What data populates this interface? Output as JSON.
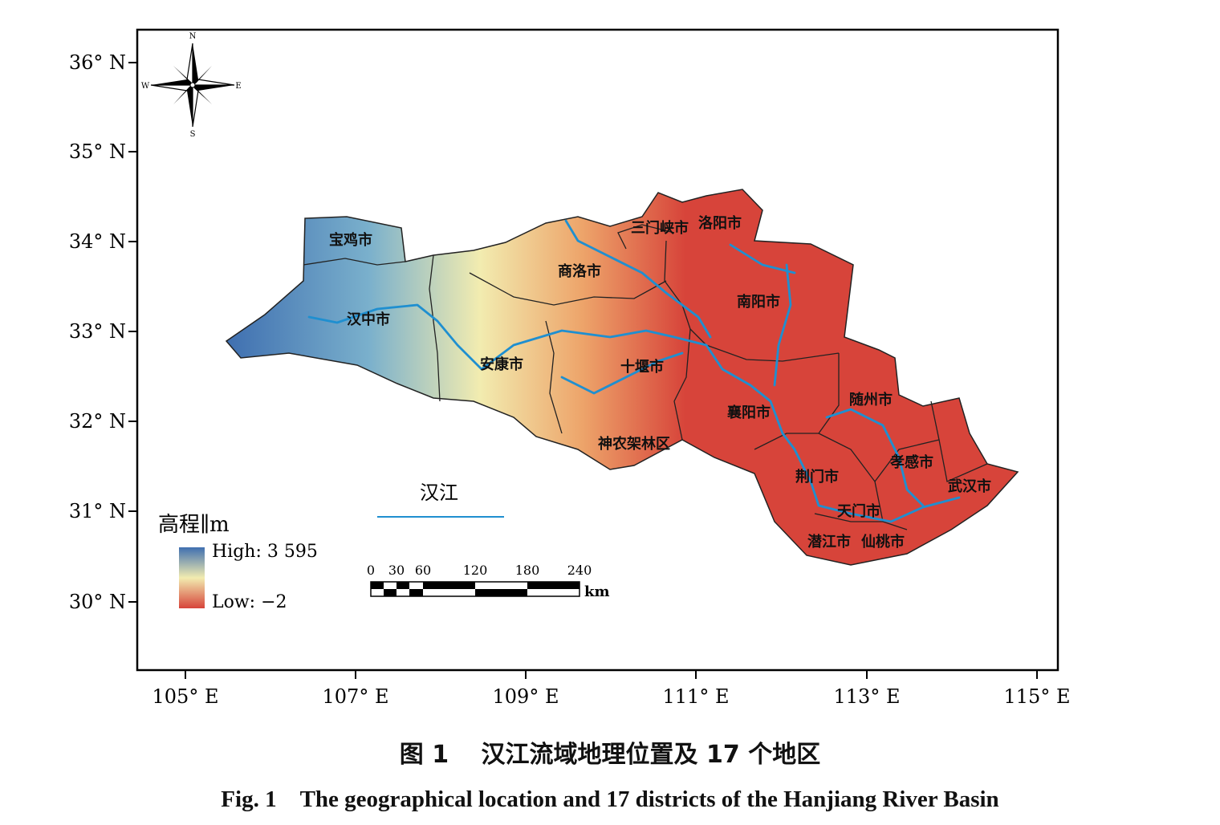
{
  "map": {
    "lat_ticks": [
      "36° N",
      "35° N",
      "34° N",
      "33° N",
      "32° N",
      "31° N",
      "30° N"
    ],
    "lon_ticks": [
      "105° E",
      "107° E",
      "109° E",
      "111° E",
      "113° E",
      "115° E"
    ],
    "compass": {
      "n": "N",
      "s": "S",
      "e": "E",
      "w": "W"
    },
    "districts": [
      "宝鸡市",
      "商洛市",
      "三门峡市",
      "洛阳市",
      "南阳市",
      "汉中市",
      "安康市",
      "十堰市",
      "襄阳市",
      "随州市",
      "神农架林区",
      "孝感市",
      "荆门市",
      "武汉市",
      "天门市",
      "潜江市",
      "仙桃市"
    ],
    "river": {
      "name": "汉江",
      "color": "#1f8fd0"
    },
    "legend": {
      "title": "高程∥m",
      "high": "High: 3 595",
      "low": "Low: −2",
      "color_high": "#3f6fb0",
      "color_mid": "#f2ecb0",
      "color_low": "#d7443a"
    },
    "scale_bar": {
      "ticks": [
        "0",
        "30",
        "60",
        "120",
        "180",
        "240"
      ],
      "unit": "km"
    }
  },
  "caption": {
    "cn": "图 1　 汉江流域地理位置及 17 个地区",
    "en": "Fig. 1　The geographical location and 17 districts of the Hanjiang River Basin"
  }
}
